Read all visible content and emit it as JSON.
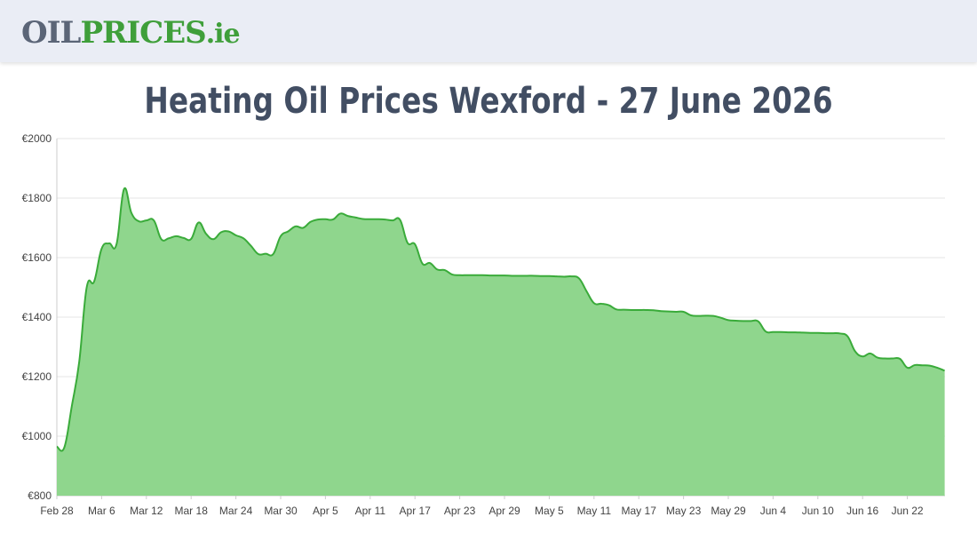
{
  "header": {
    "logo_part1": "OIL",
    "logo_part2": "PRICES",
    "logo_part3": ".ie",
    "background_color": "#eaedf5"
  },
  "page_title": "Heating Oil Prices Wexford - 27 June 2026",
  "chart_data": {
    "type": "area",
    "title": "Heating Oil Prices Wexford - 27 June 2026",
    "xlabel": "",
    "ylabel": "",
    "ylim": [
      800,
      2000
    ],
    "yticks": [
      800,
      1000,
      1200,
      1400,
      1600,
      1800,
      2000
    ],
    "ytick_labels": [
      "€800",
      "€1000",
      "€1200",
      "€1400",
      "€1600",
      "€1800",
      "€2000"
    ],
    "xticks": [
      "Feb 28",
      "Mar 6",
      "Mar 12",
      "Mar 18",
      "Mar 24",
      "Mar 30",
      "Apr 5",
      "Apr 11",
      "Apr 17",
      "Apr 23",
      "Apr 29",
      "May 5",
      "May 11",
      "May 17",
      "May 23",
      "May 29",
      "Jun 4",
      "Jun 10",
      "Jun 16",
      "Jun 22"
    ],
    "grid": true,
    "line_color": "#3aab3a",
    "fill_color": "#8fd68d",
    "x": [
      "Feb 28",
      "Mar 1",
      "Mar 2",
      "Mar 3",
      "Mar 4",
      "Mar 5",
      "Mar 6",
      "Mar 7",
      "Mar 8",
      "Mar 9",
      "Mar 10",
      "Mar 11",
      "Mar 12",
      "Mar 13",
      "Mar 14",
      "Mar 15",
      "Mar 16",
      "Mar 17",
      "Mar 18",
      "Mar 19",
      "Mar 20",
      "Mar 21",
      "Mar 22",
      "Mar 23",
      "Mar 24",
      "Mar 25",
      "Mar 26",
      "Mar 27",
      "Mar 28",
      "Mar 29",
      "Mar 30",
      "Mar 31",
      "Apr 1",
      "Apr 2",
      "Apr 3",
      "Apr 4",
      "Apr 5",
      "Apr 6",
      "Apr 7",
      "Apr 8",
      "Apr 9",
      "Apr 10",
      "Apr 11",
      "Apr 12",
      "Apr 13",
      "Apr 14",
      "Apr 15",
      "Apr 16",
      "Apr 17",
      "Apr 18",
      "Apr 19",
      "Apr 20",
      "Apr 21",
      "Apr 22",
      "Apr 23",
      "Apr 24",
      "Apr 25",
      "Apr 26",
      "Apr 27",
      "Apr 28",
      "Apr 29",
      "Apr 30",
      "May 1",
      "May 2",
      "May 3",
      "May 4",
      "May 5",
      "May 6",
      "May 7",
      "May 8",
      "May 9",
      "May 10",
      "May 11",
      "May 12",
      "May 13",
      "May 14",
      "May 15",
      "May 16",
      "May 17",
      "May 18",
      "May 19",
      "May 20",
      "May 21",
      "May 22",
      "May 23",
      "May 24",
      "May 25",
      "May 26",
      "May 27",
      "May 28",
      "May 29",
      "May 30",
      "May 31",
      "Jun 1",
      "Jun 2",
      "Jun 3",
      "Jun 4",
      "Jun 5",
      "Jun 6",
      "Jun 7",
      "Jun 8",
      "Jun 9",
      "Jun 10",
      "Jun 11",
      "Jun 12",
      "Jun 13",
      "Jun 14",
      "Jun 15",
      "Jun 16",
      "Jun 17",
      "Jun 18",
      "Jun 19",
      "Jun 20",
      "Jun 21",
      "Jun 22",
      "Jun 23",
      "Jun 24",
      "Jun 25",
      "Jun 26",
      "Jun 27"
    ],
    "series": [
      {
        "values": [
          965,
          962,
          1100,
          1250,
          1500,
          1520,
          1630,
          1648,
          1645,
          1830,
          1750,
          1722,
          1725,
          1725,
          1662,
          1665,
          1672,
          1666,
          1663,
          1718,
          1680,
          1662,
          1685,
          1688,
          1675,
          1665,
          1640,
          1612,
          1613,
          1612,
          1672,
          1688,
          1705,
          1700,
          1720,
          1728,
          1729,
          1728,
          1748,
          1740,
          1735,
          1730,
          1729,
          1729,
          1728,
          1725,
          1727,
          1650,
          1645,
          1580,
          1582,
          1560,
          1558,
          1543,
          1541,
          1541,
          1541,
          1541,
          1540,
          1540,
          1540,
          1539,
          1539,
          1539,
          1539,
          1538,
          1538,
          1537,
          1536,
          1537,
          1530,
          1487,
          1447,
          1445,
          1440,
          1426,
          1425,
          1424,
          1424,
          1424,
          1423,
          1420,
          1419,
          1418,
          1418,
          1406,
          1404,
          1405,
          1404,
          1398,
          1390,
          1388,
          1387,
          1387,
          1386,
          1352,
          1350,
          1350,
          1349,
          1349,
          1348,
          1347,
          1347,
          1346,
          1346,
          1345,
          1335,
          1285,
          1268,
          1278,
          1264,
          1261,
          1261,
          1260,
          1230,
          1239,
          1238,
          1237,
          1230,
          1220
        ]
      }
    ]
  }
}
